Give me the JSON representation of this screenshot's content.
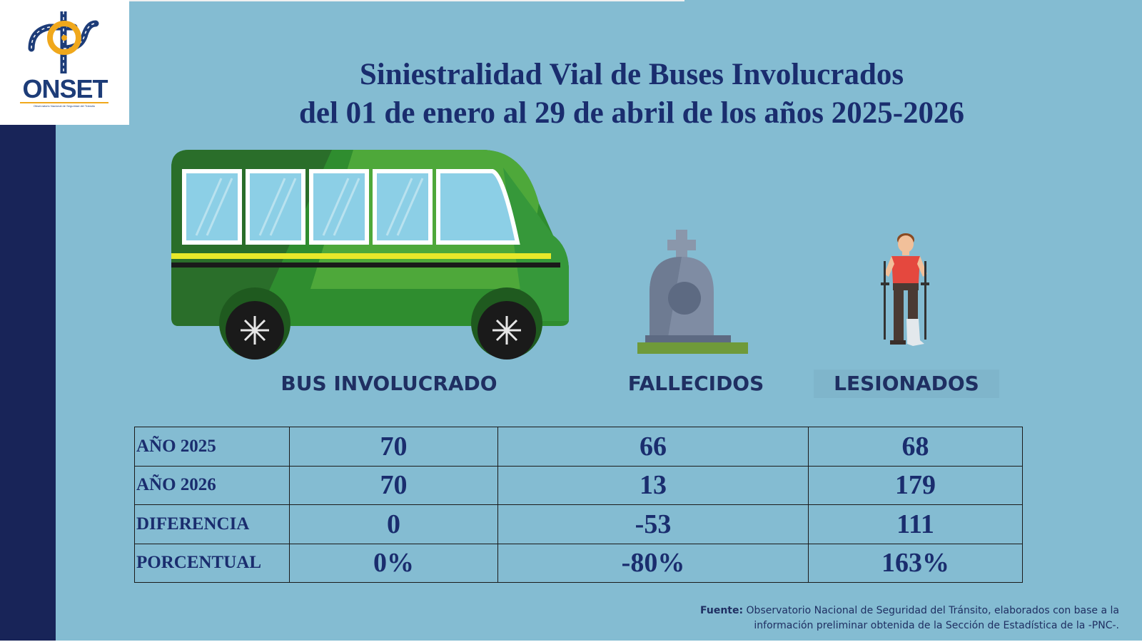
{
  "logo": {
    "name": "ONSET",
    "subtitle": "Observatorio Nacional de Seguridad del Tránsito"
  },
  "title": {
    "line1": "Siniestralidad Vial de Buses Involucrados",
    "line2": "del 01 de enero al 29 de abril de los años 2025-2026"
  },
  "columns": {
    "bus": "BUS INVOLUCRADO",
    "fallecidos": "FALLECIDOS",
    "lesionados": "LESIONADOS"
  },
  "table": {
    "rows": [
      {
        "label": "AÑO 2025",
        "bus": "70",
        "fallecidos": "66",
        "lesionados": "68"
      },
      {
        "label": "AÑO 2026",
        "bus": "70",
        "fallecidos": "13",
        "lesionados": "179"
      },
      {
        "label": "DIFERENCIA",
        "bus": "0",
        "fallecidos": "-53",
        "lesionados": "111"
      },
      {
        "label": "PORCENTUAL",
        "bus": "0%",
        "fallecidos": "-80%",
        "lesionados": "163%"
      }
    ]
  },
  "source": {
    "label": "Fuente:",
    "line1": "Observatorio Nacional de Seguridad del Tránsito, elaborados con base a la",
    "line2": "información preliminar obtenida de la Sección de Estadística de la -PNC-."
  },
  "icons": {
    "logo": "onset-road-logo-icon",
    "bus": "bus-icon",
    "tombstone": "tombstone-icon",
    "injured": "injured-person-icon"
  },
  "colors": {
    "background": "#84bcd2",
    "sidebar": "#182458",
    "title": "#1a2d6e",
    "bus_green": "#2e8b2e",
    "accent_orange": "#f0a81c"
  }
}
